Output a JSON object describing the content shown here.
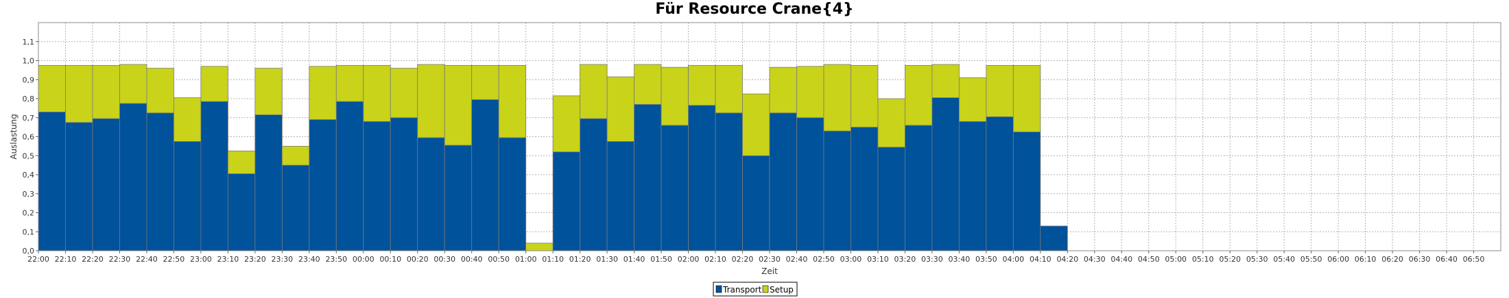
{
  "chart_data": {
    "type": "bar",
    "stacked": true,
    "title": "Für Resource Crane{4}",
    "xlabel": "Zeit",
    "ylabel": "Auslastung",
    "ylim": [
      0,
      1.2
    ],
    "yticks": [
      "0,0",
      "0,1",
      "0,2",
      "0,3",
      "0,4",
      "0,5",
      "0,6",
      "0,7",
      "0,8",
      "0,9",
      "1,0",
      "1,1"
    ],
    "grid": true,
    "legend_position": "bottom-center",
    "categories": [
      "22:00",
      "22:10",
      "22:20",
      "22:30",
      "22:40",
      "22:50",
      "23:00",
      "23:10",
      "23:20",
      "23:30",
      "23:40",
      "23:50",
      "00:00",
      "00:10",
      "00:20",
      "00:30",
      "00:40",
      "00:50",
      "01:00",
      "01:10",
      "01:20",
      "01:30",
      "01:40",
      "01:50",
      "02:00",
      "02:10",
      "02:20",
      "02:30",
      "02:40",
      "02:50",
      "03:00",
      "03:10",
      "03:20",
      "03:30",
      "03:40",
      "03:50",
      "04:00",
      "04:10",
      "04:20",
      "04:30",
      "04:40",
      "04:50",
      "05:00",
      "05:10",
      "05:20",
      "05:30",
      "05:40",
      "05:50",
      "06:00",
      "06:10",
      "06:20",
      "06:30",
      "06:40",
      "06:50"
    ],
    "series": [
      {
        "name": "Transport",
        "color": "#00529B",
        "values": [
          0.73,
          0.675,
          0.695,
          0.775,
          0.725,
          0.575,
          0.785,
          0.405,
          0.715,
          0.45,
          0.69,
          0.785,
          0.68,
          0.7,
          0.595,
          0.555,
          0.795,
          0.595,
          0.0,
          0.52,
          0.695,
          0.575,
          0.77,
          0.66,
          0.765,
          0.725,
          0.5,
          0.725,
          0.7,
          0.63,
          0.65,
          0.545,
          0.66,
          0.805,
          0.68,
          0.705,
          0.625,
          0.13,
          0,
          0,
          0,
          0,
          0,
          0,
          0,
          0,
          0,
          0,
          0,
          0,
          0,
          0,
          0,
          0
        ]
      },
      {
        "name": "Setup",
        "color": "#C8D319",
        "values": [
          0.245,
          0.3,
          0.28,
          0.205,
          0.235,
          0.23,
          0.185,
          0.12,
          0.245,
          0.1,
          0.28,
          0.19,
          0.295,
          0.26,
          0.385,
          0.42,
          0.18,
          0.38,
          0.04,
          0.295,
          0.285,
          0.34,
          0.21,
          0.305,
          0.21,
          0.25,
          0.325,
          0.24,
          0.27,
          0.35,
          0.325,
          0.255,
          0.315,
          0.175,
          0.23,
          0.27,
          0.35,
          0,
          0,
          0,
          0,
          0,
          0,
          0,
          0,
          0,
          0,
          0,
          0,
          0,
          0,
          0,
          0,
          0
        ]
      }
    ]
  }
}
